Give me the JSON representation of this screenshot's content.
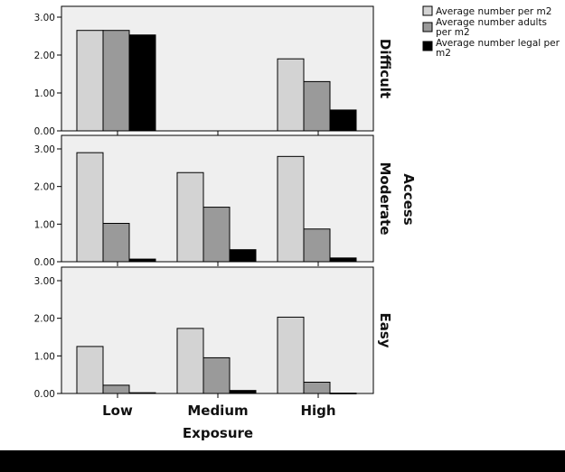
{
  "chart_data": {
    "type": "bar",
    "xlabel": "Exposure",
    "facet_label": "Access",
    "categories": [
      "Low",
      "Medium",
      "High"
    ],
    "ylim": [
      0,
      3.2
    ],
    "yticks": [
      0,
      1,
      2,
      3
    ],
    "ytick_labels": [
      "0.00",
      "1.00",
      "2.00",
      "3.00"
    ],
    "grid": false,
    "legend_position": "top-right",
    "series": [
      {
        "name": "Average number per m2",
        "color": "#d3d3d3"
      },
      {
        "name": "Average number adults per m2",
        "color": "#9a9a9a"
      },
      {
        "name": "Average number legal per m2",
        "color": "#000000"
      }
    ],
    "panels": [
      {
        "label": "Difficult",
        "values": [
          [
            2.65,
            null,
            1.9
          ],
          [
            2.65,
            null,
            1.3
          ],
          [
            2.53,
            null,
            0.55
          ]
        ]
      },
      {
        "label": "Moderate",
        "values": [
          [
            2.9,
            2.37,
            2.8
          ],
          [
            1.02,
            1.45,
            0.87
          ],
          [
            0.07,
            0.32,
            0.1
          ]
        ]
      },
      {
        "label": "Easy",
        "values": [
          [
            1.25,
            1.73,
            2.03
          ],
          [
            0.22,
            0.95,
            0.3
          ],
          [
            0.02,
            0.08,
            0.01
          ]
        ]
      }
    ]
  },
  "legend": {
    "items": [
      {
        "label_line1": "Average number per m2",
        "label_line2": ""
      },
      {
        "label_line1": "Average number adults",
        "label_line2": "per m2"
      },
      {
        "label_line1": "Average number legal per",
        "label_line2": "m2"
      }
    ]
  }
}
